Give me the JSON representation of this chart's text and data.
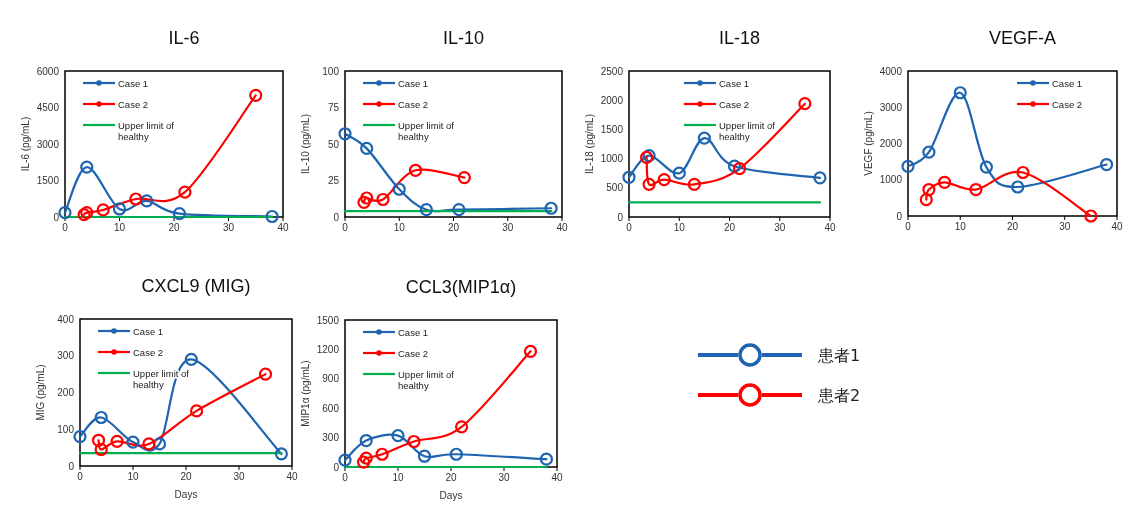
{
  "chart_data": [
    {
      "type": "line",
      "title": "IL-6",
      "ylabel": "IL-6 (pg/mL)",
      "xlim": [
        0,
        40
      ],
      "xticks": [
        0,
        10,
        20,
        30,
        40
      ],
      "ylim": [
        0,
        6000
      ],
      "yticks": [
        0,
        1500,
        3000,
        4500,
        6000
      ],
      "marker": "circle",
      "legend": "top left",
      "series": [
        {
          "name": "Case 1",
          "color": "#1e64b0",
          "x": [
            0,
            4,
            10,
            15,
            21,
            38
          ],
          "values": [
            180,
            2050,
            330,
            660,
            140,
            20
          ]
        },
        {
          "name": "Case 2",
          "color": "#ff0000",
          "x": [
            3.5,
            4,
            7,
            13,
            22,
            35
          ],
          "values": [
            100,
            180,
            290,
            740,
            1020,
            5000
          ]
        },
        {
          "name": "Upper limit of healthy",
          "color": "#00b050",
          "marker": "none",
          "x": [
            0,
            38
          ],
          "values": [
            0,
            0
          ]
        }
      ]
    },
    {
      "type": "line",
      "title": "IL-10",
      "ylabel": "IL-10 (pg/mL)",
      "xlim": [
        0,
        40
      ],
      "xticks": [
        0,
        10,
        20,
        30,
        40
      ],
      "ylim": [
        0,
        100
      ],
      "yticks": [
        0,
        25,
        50,
        75,
        100
      ],
      "marker": "circle",
      "legend": "top left",
      "series": [
        {
          "name": "Case 1",
          "color": "#1e64b0",
          "x": [
            0,
            4,
            10,
            15,
            21,
            38
          ],
          "values": [
            57,
            47,
            19,
            5,
            5,
            6
          ]
        },
        {
          "name": "Case 2",
          "color": "#ff0000",
          "x": [
            3.5,
            4,
            7,
            13,
            22
          ],
          "values": [
            10,
            13,
            12,
            32,
            27
          ]
        },
        {
          "name": "Upper limit of healthy",
          "color": "#00b050",
          "marker": "none",
          "x": [
            0,
            38
          ],
          "values": [
            4,
            4
          ]
        }
      ]
    },
    {
      "type": "line",
      "title": "IL-18",
      "ylabel": "IL-18 (pg/mL)",
      "xlim": [
        0,
        40
      ],
      "xticks": [
        0,
        10,
        20,
        30,
        40
      ],
      "ylim": [
        0,
        2500
      ],
      "yticks": [
        0,
        500,
        1000,
        1500,
        2000,
        2500
      ],
      "marker": "circle",
      "legend": "top",
      "series": [
        {
          "name": "Case 1",
          "color": "#1e64b0",
          "x": [
            0,
            4,
            10,
            15,
            21,
            38
          ],
          "values": [
            680,
            1050,
            750,
            1350,
            870,
            670
          ]
        },
        {
          "name": "Case 2",
          "color": "#ff0000",
          "x": [
            3.5,
            4,
            7,
            13,
            22,
            35
          ],
          "values": [
            1020,
            560,
            640,
            560,
            830,
            1940
          ]
        },
        {
          "name": "Upper limit of healthy",
          "color": "#00b050",
          "marker": "none",
          "x": [
            0,
            38
          ],
          "values": [
            250,
            250
          ]
        }
      ]
    },
    {
      "type": "line",
      "title": "VEGF-A",
      "ylabel": "VEGF (pg/mL)",
      "xlim": [
        0,
        40
      ],
      "xticks": [
        0,
        10,
        20,
        30,
        40
      ],
      "ylim": [
        0,
        4000
      ],
      "yticks": [
        0,
        1000,
        2000,
        3000,
        4000
      ],
      "marker": "circle",
      "legend": "top right",
      "series": [
        {
          "name": "Case 1",
          "color": "#1e64b0",
          "x": [
            0,
            4,
            10,
            15,
            21,
            38
          ],
          "values": [
            1370,
            1760,
            3400,
            1350,
            800,
            1420
          ]
        },
        {
          "name": "Case 2",
          "color": "#ff0000",
          "x": [
            3.5,
            4,
            7,
            13,
            22,
            35
          ],
          "values": [
            450,
            730,
            930,
            730,
            1200,
            0
          ]
        }
      ]
    },
    {
      "type": "line",
      "title": "CXCL9 (MIG)",
      "xlabel": "Days",
      "ylabel": "MIG (pg/mL)",
      "xlim": [
        0,
        40
      ],
      "xticks": [
        0,
        10,
        20,
        30,
        40
      ],
      "ylim": [
        0,
        400
      ],
      "yticks": [
        0,
        100,
        200,
        300,
        400
      ],
      "marker": "circle",
      "legend": "top left",
      "series": [
        {
          "name": "Case 1",
          "color": "#1e64b0",
          "x": [
            0,
            4,
            10,
            15,
            21,
            38
          ],
          "values": [
            80,
            132,
            65,
            60,
            290,
            33
          ]
        },
        {
          "name": "Case 2",
          "color": "#ff0000",
          "x": [
            3.5,
            4,
            7,
            13,
            22,
            35
          ],
          "values": [
            70,
            45,
            67,
            60,
            150,
            250
          ]
        },
        {
          "name": "Upper limit of healthy",
          "color": "#00b050",
          "marker": "none",
          "x": [
            0,
            38
          ],
          "values": [
            35,
            35
          ]
        }
      ]
    },
    {
      "type": "line",
      "title": "CCL3(MIP1α)",
      "xlabel": "Days",
      "ylabel": "MIP1α (pg/mL)",
      "xlim": [
        0,
        40
      ],
      "xticks": [
        0,
        10,
        20,
        30,
        40
      ],
      "ylim": [
        0,
        1500
      ],
      "yticks": [
        0,
        300,
        600,
        900,
        1200,
        1500
      ],
      "marker": "circle",
      "legend": "top left",
      "series": [
        {
          "name": "Case 1",
          "color": "#1e64b0",
          "x": [
            0,
            4,
            10,
            15,
            21,
            38
          ],
          "values": [
            70,
            270,
            320,
            110,
            130,
            80
          ]
        },
        {
          "name": "Case 2",
          "color": "#ff0000",
          "x": [
            3.5,
            4,
            7,
            13,
            22,
            35
          ],
          "values": [
            50,
            90,
            130,
            260,
            410,
            1180
          ]
        },
        {
          "name": "Upper limit of healthy",
          "color": "#00b050",
          "marker": "none",
          "x": [
            0,
            38
          ],
          "values": [
            0,
            0
          ]
        }
      ]
    },
    {
      "type": "other",
      "series": [
        {
          "name": "患者1",
          "color": "#1e64b0"
        },
        {
          "name": "患者2",
          "color": "#ff0000"
        }
      ]
    }
  ]
}
